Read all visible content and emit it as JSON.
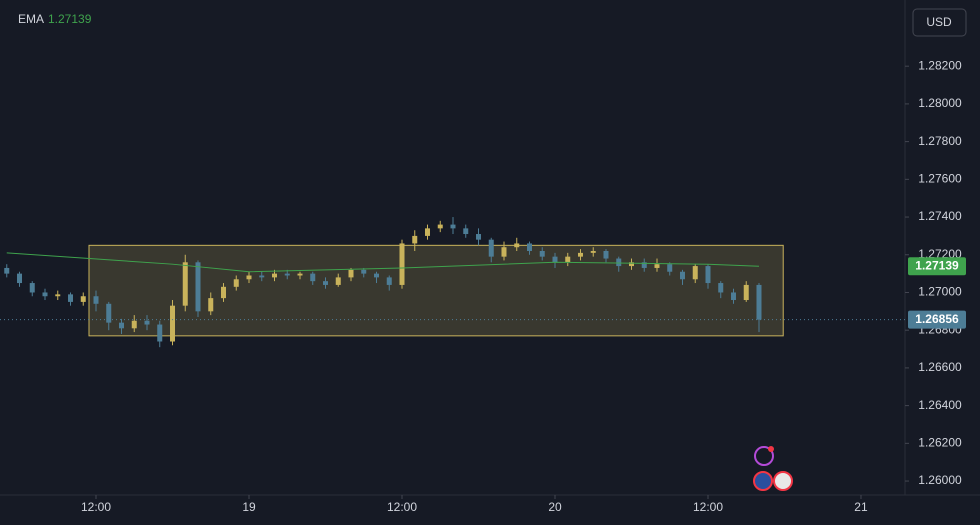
{
  "chart_data": {
    "type": "candlestick",
    "currency": "USD",
    "up_color": "#c9b35b",
    "down_color": "#4d7d96",
    "x": [
      5,
      6,
      7,
      8,
      9,
      10,
      11,
      12,
      13,
      14,
      15,
      16,
      17,
      18,
      19,
      20,
      21,
      22,
      23,
      24,
      25,
      26,
      27,
      28,
      29,
      30,
      31,
      32,
      33,
      34,
      35,
      36,
      37,
      38,
      39,
      40,
      41,
      42,
      43,
      44,
      45,
      46,
      47,
      48,
      49,
      50,
      51,
      52,
      53,
      54,
      55,
      56,
      57,
      58,
      59,
      60,
      61,
      62,
      63,
      64
    ],
    "open": [
      1.2713,
      1.271,
      1.2705,
      1.27,
      1.2698,
      1.2699,
      1.2695,
      1.2698,
      1.2694,
      1.2684,
      1.2681,
      1.2685,
      1.2683,
      1.2674,
      1.2693,
      1.2716,
      1.269,
      1.2697,
      1.2703,
      1.2707,
      1.2709,
      1.2708,
      1.271,
      1.2709,
      1.271,
      1.2706,
      1.2704,
      1.2708,
      1.2712,
      1.271,
      1.2708,
      1.2704,
      1.2726,
      1.273,
      1.2734,
      1.2736,
      1.2734,
      1.2731,
      1.2728,
      1.2719,
      1.2724,
      1.2726,
      1.2722,
      1.2719,
      1.2716,
      1.2719,
      1.2721,
      1.2722,
      1.2718,
      1.2714,
      1.2716,
      1.2713,
      1.2715,
      1.2711,
      1.2707,
      1.2714,
      1.2705,
      1.27,
      1.2696,
      1.2704
    ],
    "high": [
      1.2715,
      1.2711,
      1.2706,
      1.2702,
      1.2701,
      1.27,
      1.27,
      1.2701,
      1.2695,
      1.2686,
      1.2688,
      1.2688,
      1.2685,
      1.2696,
      1.272,
      1.2717,
      1.27,
      1.2705,
      1.2709,
      1.2711,
      1.2711,
      1.2712,
      1.2712,
      1.2711,
      1.2711,
      1.2708,
      1.271,
      1.2713,
      1.2713,
      1.2711,
      1.2709,
      1.2728,
      1.2733,
      1.2736,
      1.2738,
      1.274,
      1.2736,
      1.2734,
      1.2729,
      1.2727,
      1.2729,
      1.2727,
      1.2724,
      1.2721,
      1.2721,
      1.2723,
      1.2724,
      1.2723,
      1.2719,
      1.2718,
      1.2718,
      1.2718,
      1.2716,
      1.2712,
      1.2715,
      1.2715,
      1.2706,
      1.2702,
      1.2706,
      1.2705
    ],
    "low": [
      1.2708,
      1.2703,
      1.2698,
      1.2696,
      1.2696,
      1.2693,
      1.2693,
      1.269,
      1.268,
      1.2678,
      1.2679,
      1.268,
      1.2671,
      1.2672,
      1.269,
      1.2687,
      1.2688,
      1.2695,
      1.2701,
      1.2705,
      1.2706,
      1.2706,
      1.2707,
      1.2707,
      1.2704,
      1.2702,
      1.2703,
      1.2706,
      1.2708,
      1.2705,
      1.2701,
      1.2702,
      1.2722,
      1.2728,
      1.2732,
      1.2731,
      1.2729,
      1.2725,
      1.2716,
      1.2717,
      1.2722,
      1.272,
      1.2717,
      1.2713,
      1.2714,
      1.2717,
      1.2719,
      1.2716,
      1.2711,
      1.2712,
      1.2711,
      1.2711,
      1.2709,
      1.2704,
      1.2705,
      1.2702,
      1.2697,
      1.2694,
      1.2695,
      1.2679
    ],
    "close": [
      1.271,
      1.2705,
      1.27,
      1.2698,
      1.2699,
      1.2695,
      1.2698,
      1.2694,
      1.2684,
      1.2681,
      1.2685,
      1.2683,
      1.2674,
      1.2693,
      1.2716,
      1.269,
      1.2697,
      1.2703,
      1.2707,
      1.2709,
      1.2708,
      1.271,
      1.2709,
      1.271,
      1.2706,
      1.2704,
      1.2708,
      1.2712,
      1.271,
      1.2708,
      1.2704,
      1.2726,
      1.273,
      1.2734,
      1.2736,
      1.2734,
      1.2731,
      1.2728,
      1.2719,
      1.2724,
      1.2726,
      1.2722,
      1.2719,
      1.2716,
      1.2719,
      1.2721,
      1.2722,
      1.2718,
      1.2714,
      1.2716,
      1.2713,
      1.2715,
      1.2711,
      1.2707,
      1.2714,
      1.2705,
      1.27,
      1.2696,
      1.2704,
      1.26856
    ],
    "ema": {
      "name": "EMA",
      "color": "#3fa34d",
      "x": [
        5,
        18,
        24,
        36,
        48,
        60,
        64
      ],
      "values": [
        1.2721,
        1.2715,
        1.2711,
        1.2713,
        1.2716,
        1.2715,
        1.27139
      ]
    },
    "box": {
      "x": [
        11.45,
        65.9
      ],
      "y": [
        1.2677,
        1.2725
      ]
    },
    "box_color": "#c9b35b",
    "xlim": [
      4.47,
      75.06
    ],
    "ylim": [
      1.25926,
      1.28551
    ],
    "xticks": [
      {
        "value": 12,
        "label": "12:00"
      },
      {
        "value": 24,
        "label": "19"
      },
      {
        "value": 36,
        "label": "12:00"
      },
      {
        "value": 48,
        "label": "20"
      },
      {
        "value": 60,
        "label": "12:00"
      },
      {
        "value": 72,
        "label": "21"
      }
    ],
    "yticks": [
      {
        "value": 1.26,
        "label": "1.26000"
      },
      {
        "value": 1.262,
        "label": "1.26200"
      },
      {
        "value": 1.264,
        "label": "1.26400"
      },
      {
        "value": 1.266,
        "label": "1.26600"
      },
      {
        "value": 1.268,
        "label": "1.26800"
      },
      {
        "value": 1.27,
        "label": "1.27000"
      },
      {
        "value": 1.272,
        "label": "1.27200"
      },
      {
        "value": 1.274,
        "label": "1.27400"
      },
      {
        "value": 1.276,
        "label": "1.27600"
      },
      {
        "value": 1.278,
        "label": "1.27800"
      },
      {
        "value": 1.28,
        "label": "1.28000"
      },
      {
        "value": 1.282,
        "label": "1.28200"
      }
    ]
  }
}
